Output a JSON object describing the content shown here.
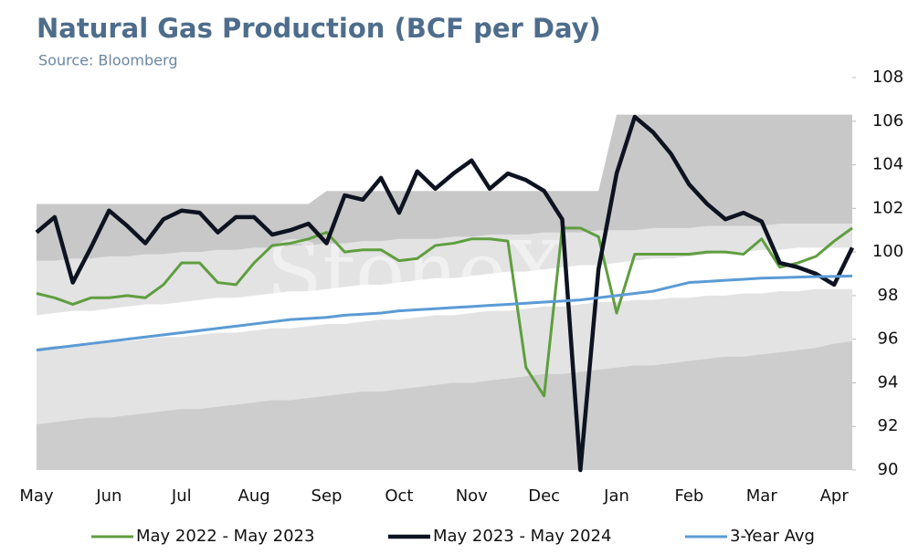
{
  "chart_data": {
    "type": "line",
    "title": "Natural Gas Production (BCF per Day)",
    "subtitle": "Source: Bloomberg",
    "watermark": "StoneX",
    "categories": [
      "May",
      null,
      null,
      null,
      "Jun",
      null,
      null,
      null,
      "Jul",
      null,
      null,
      null,
      "Aug",
      null,
      null,
      null,
      "Sep",
      null,
      null,
      null,
      "Oct",
      null,
      null,
      null,
      "Nov",
      null,
      null,
      null,
      "Dec",
      null,
      null,
      null,
      "Jan",
      null,
      null,
      null,
      "Feb",
      null,
      null,
      null,
      "Mar",
      null,
      null,
      null,
      "Apr",
      null
    ],
    "ylim": [
      90,
      108
    ],
    "yticks": [
      90,
      92,
      94,
      96,
      98,
      100,
      102,
      104,
      106,
      108
    ],
    "bands": [
      {
        "color": "#c8c8c8",
        "values": [
          102.2,
          102.2,
          102.2,
          102.2,
          102.2,
          102.2,
          102.2,
          102.2,
          102.2,
          102.2,
          102.2,
          102.2,
          102.2,
          102.2,
          102.2,
          102.2,
          102.8,
          102.8,
          102.8,
          102.8,
          102.8,
          102.8,
          102.8,
          102.8,
          102.8,
          102.8,
          102.8,
          102.8,
          102.8,
          102.8,
          102.8,
          102.8,
          106.3,
          106.3,
          106.3,
          106.3,
          106.3,
          106.3,
          106.3,
          106.3,
          106.3,
          106.3,
          106.3,
          106.3,
          106.3,
          106.3
        ]
      },
      {
        "color": "#e3e3e3",
        "values": [
          99.6,
          99.6,
          99.7,
          99.7,
          99.8,
          99.8,
          99.9,
          99.9,
          100.0,
          100.0,
          100.1,
          100.1,
          100.2,
          100.2,
          100.3,
          100.3,
          100.4,
          100.4,
          100.5,
          100.5,
          100.6,
          100.6,
          100.6,
          100.7,
          100.7,
          100.8,
          100.8,
          100.8,
          100.9,
          100.9,
          100.9,
          101.0,
          101.0,
          101.0,
          101.1,
          101.1,
          101.1,
          101.2,
          101.2,
          101.2,
          101.2,
          101.3,
          101.3,
          101.3,
          101.3,
          101.3
        ]
      },
      {
        "color": "#ffffff",
        "values": [
          97.1,
          97.2,
          97.3,
          97.3,
          97.4,
          97.5,
          97.6,
          97.6,
          97.7,
          97.8,
          97.9,
          97.9,
          98.0,
          98.1,
          98.2,
          98.2,
          98.3,
          98.4,
          98.5,
          98.5,
          98.6,
          98.7,
          98.8,
          98.8,
          98.9,
          99.0,
          99.1,
          99.1,
          99.2,
          99.3,
          99.4,
          99.4,
          99.5,
          99.6,
          99.7,
          99.7,
          99.8,
          99.9,
          100.0,
          100.0,
          100.1,
          100.1,
          100.2,
          100.2,
          100.2,
          100.2
        ]
      },
      {
        "color": "#e3e3e3",
        "values": [
          95.6,
          95.7,
          95.7,
          95.8,
          95.9,
          95.9,
          96.0,
          96.1,
          96.1,
          96.2,
          96.3,
          96.3,
          96.4,
          96.5,
          96.5,
          96.6,
          96.7,
          96.7,
          96.8,
          96.9,
          96.9,
          97.0,
          97.1,
          97.1,
          97.2,
          97.3,
          97.3,
          97.4,
          97.5,
          97.5,
          97.6,
          97.7,
          97.7,
          97.8,
          97.8,
          97.9,
          97.9,
          98.0,
          98.0,
          98.1,
          98.1,
          98.2,
          98.2,
          98.3,
          98.3,
          98.3
        ]
      },
      {
        "color": "#cdcdcd",
        "values": [
          92.1,
          92.2,
          92.3,
          92.4,
          92.4,
          92.5,
          92.6,
          92.7,
          92.8,
          92.8,
          92.9,
          93.0,
          93.1,
          93.2,
          93.2,
          93.3,
          93.4,
          93.5,
          93.6,
          93.6,
          93.7,
          93.8,
          93.9,
          94.0,
          94.0,
          94.1,
          94.2,
          94.3,
          94.4,
          94.4,
          94.5,
          94.6,
          94.7,
          94.8,
          94.8,
          94.9,
          95.0,
          95.1,
          95.2,
          95.2,
          95.3,
          95.4,
          95.5,
          95.6,
          95.8,
          95.9
        ]
      }
    ],
    "series": [
      {
        "name": "May 2022 - May 2023",
        "color": "#5f9e3f",
        "width": 3,
        "values": [
          98.1,
          97.9,
          97.6,
          97.9,
          97.9,
          98.0,
          97.9,
          98.5,
          99.5,
          99.5,
          98.6,
          98.5,
          99.5,
          100.3,
          100.4,
          100.6,
          100.9,
          100.0,
          100.1,
          100.1,
          99.6,
          99.7,
          100.3,
          100.4,
          100.6,
          100.6,
          100.5,
          94.7,
          93.4,
          101.1,
          101.1,
          100.7,
          97.2,
          99.9,
          99.9,
          99.9,
          99.9,
          100.0,
          100.0,
          99.9,
          100.6,
          99.3,
          99.5,
          99.8,
          100.5,
          101.1
        ]
      },
      {
        "name": "May 2023 - May 2024",
        "color": "#0d1320",
        "width": 4.5,
        "values": [
          100.9,
          101.6,
          98.6,
          100.2,
          101.9,
          101.2,
          100.4,
          101.5,
          101.9,
          101.8,
          100.9,
          101.6,
          101.6,
          100.8,
          101.0,
          101.3,
          100.4,
          102.6,
          102.4,
          103.4,
          101.8,
          103.7,
          102.9,
          103.6,
          104.2,
          102.9,
          103.6,
          103.3,
          102.8,
          101.5,
          90.0,
          99.2,
          103.6,
          106.2,
          105.5,
          104.5,
          103.1,
          102.2,
          101.5,
          101.8,
          101.4,
          99.5,
          99.3,
          99.0,
          98.5,
          100.2
        ]
      },
      {
        "name": "3-Year Avg",
        "color": "#5b9bd5",
        "width": 3,
        "values": [
          95.5,
          95.6,
          95.7,
          95.8,
          95.9,
          96.0,
          96.1,
          96.2,
          96.3,
          96.4,
          96.5,
          96.6,
          96.7,
          96.8,
          96.9,
          96.95,
          97.0,
          97.1,
          97.15,
          97.2,
          97.3,
          97.35,
          97.4,
          97.45,
          97.5,
          97.55,
          97.6,
          97.65,
          97.7,
          97.75,
          97.8,
          97.9,
          98.0,
          98.1,
          98.2,
          98.4,
          98.6,
          98.65,
          98.7,
          98.75,
          98.8,
          98.82,
          98.85,
          98.87,
          98.88,
          98.9
        ]
      }
    ]
  }
}
